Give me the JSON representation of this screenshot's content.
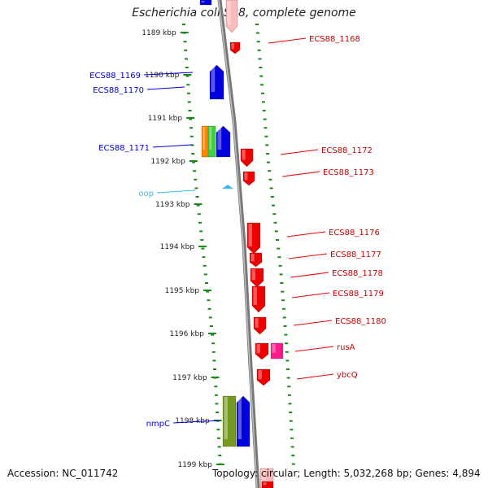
{
  "title": "Escherichia coli S88, complete genome",
  "footer": {
    "accession": "Accession: NC_011742",
    "topology": "Topology: circular; Length: 5,032,268 bp; Genes: 4,894"
  },
  "colors": {
    "tick": "#1a8a1a",
    "backbone": "#8a8a8a",
    "red": "#ee0000",
    "blue": "#0000dd",
    "orange": "#ff8800",
    "green": "#44cc44",
    "olive": "#779922",
    "magenta": "#ff1a8c",
    "cyan": "#33bbee",
    "pink": "#ffbbbb"
  },
  "kbp_labels": [
    "1189 kbp",
    "1190 kbp",
    "1191 kbp",
    "1192 kbp",
    "1193 kbp",
    "1194 kbp",
    "1195 kbp",
    "1196 kbp",
    "1197 kbp",
    "1198 kbp",
    "1199 kbp"
  ],
  "right_gene_labels": [
    "ECS88_1168",
    "ECS88_1172",
    "ECS88_1173",
    "ECS88_1176",
    "ECS88_1177",
    "ECS88_1178",
    "ECS88_1179",
    "ECS88_1180",
    "rusA",
    "ybcQ"
  ],
  "left_gene_labels": [
    "ECS88_1169",
    "ECS88_1170",
    "ECS88_1171",
    "oop",
    "nmpC"
  ]
}
